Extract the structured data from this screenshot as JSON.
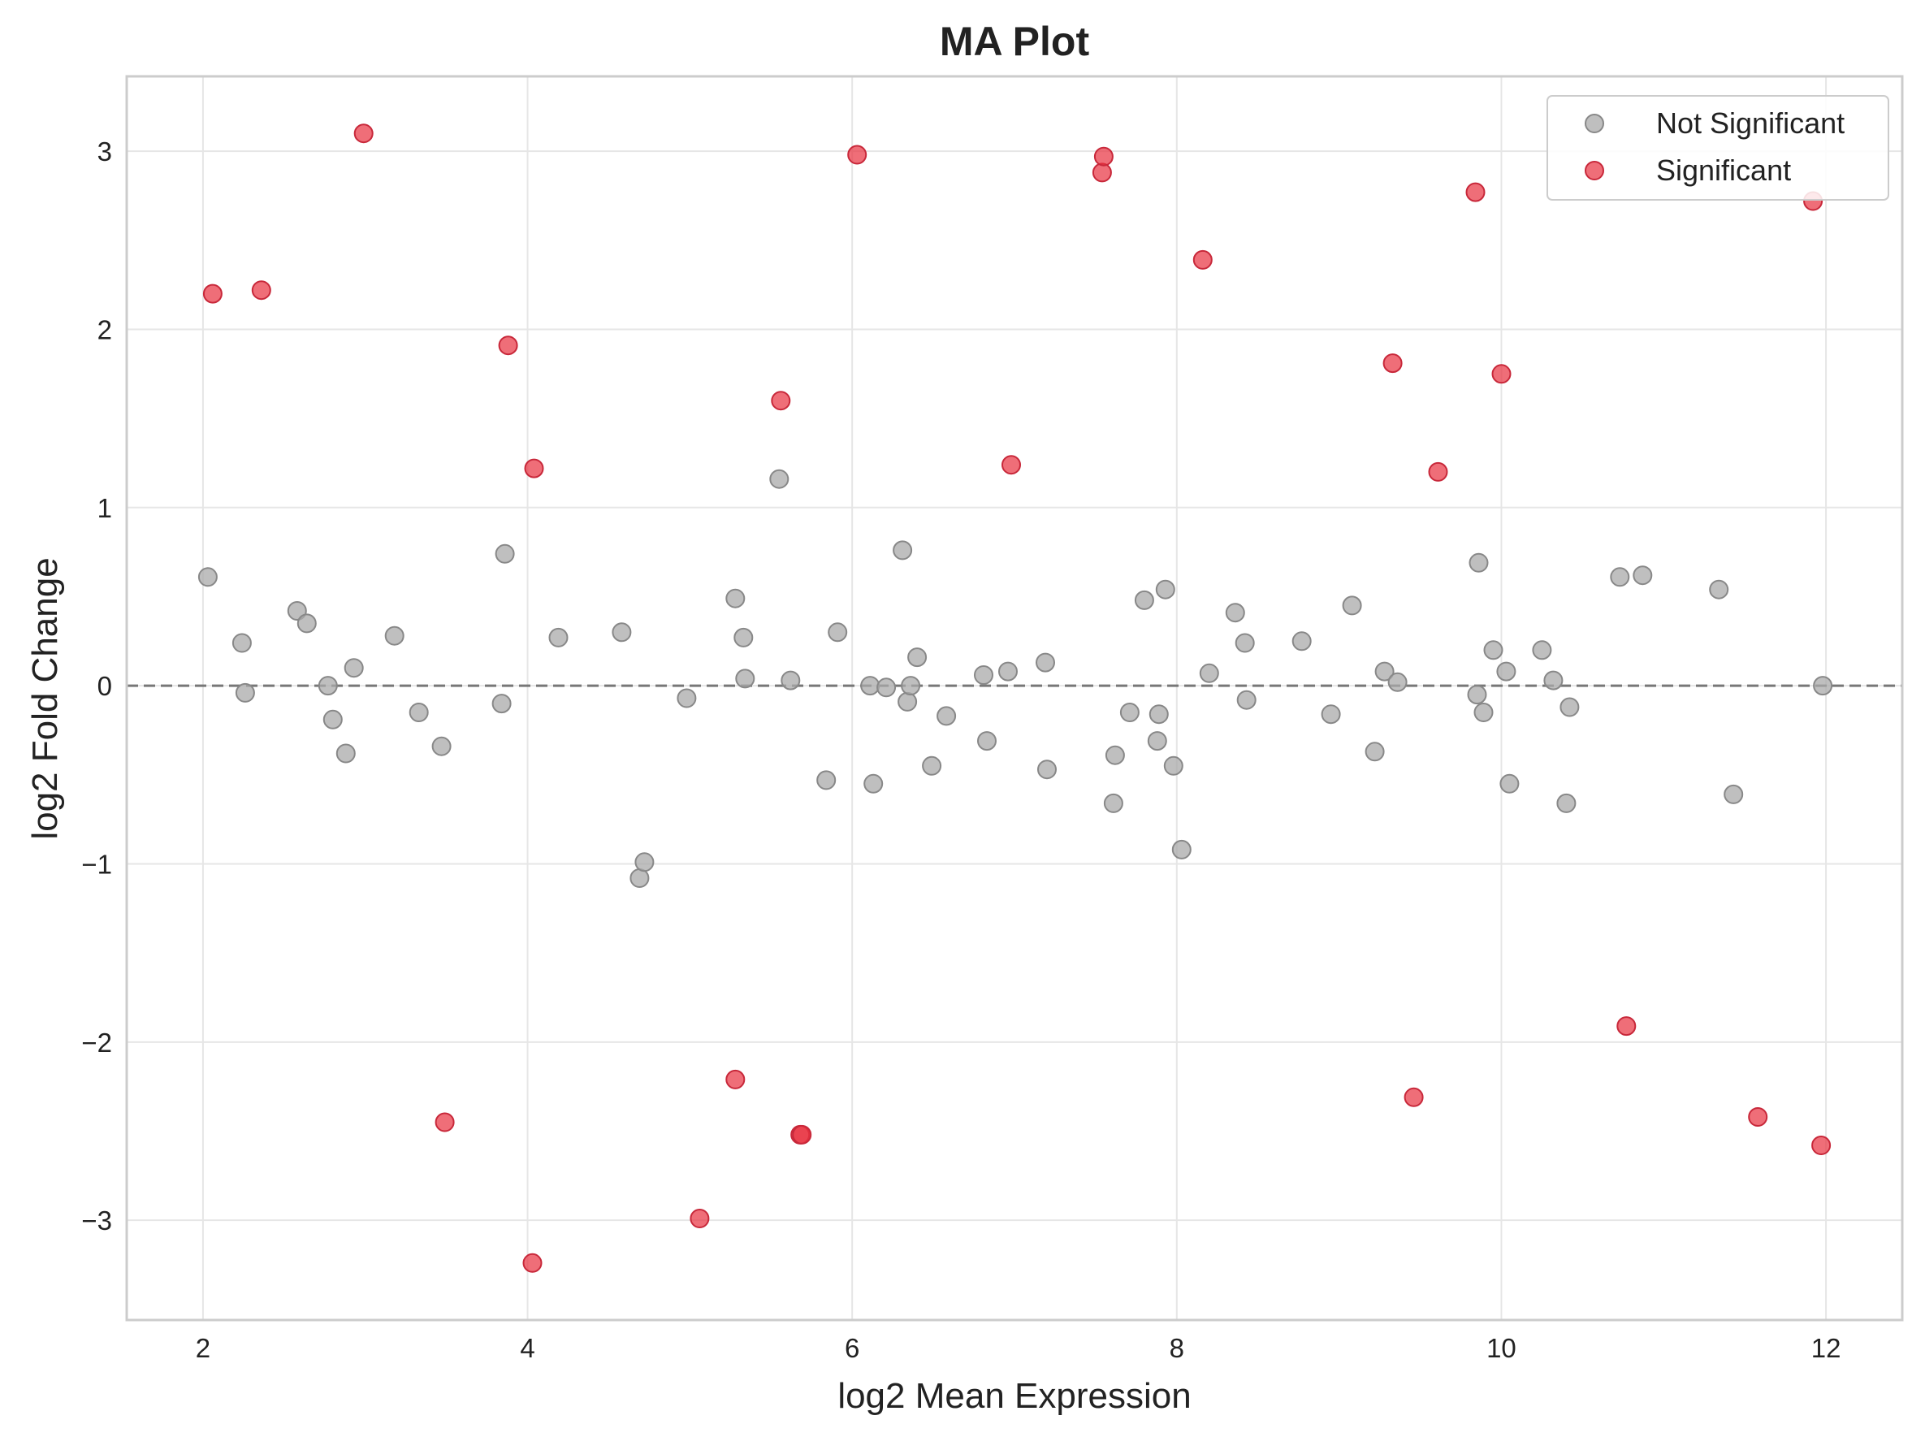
{
  "chart_data": {
    "type": "scatter",
    "title": "MA Plot",
    "xlabel": "log2 Mean Expression",
    "ylabel": "log2 Fold Change",
    "xlim": [
      1.53,
      12.47
    ],
    "ylim": [
      -3.56,
      3.42
    ],
    "xticks": [
      2,
      4,
      6,
      8,
      10,
      12
    ],
    "xtick_labels": [
      "2",
      "4",
      "6",
      "8",
      "10",
      "12"
    ],
    "yticks": [
      -3,
      -2,
      -1,
      0,
      1,
      2,
      3
    ],
    "ytick_labels": [
      "−3",
      "−2",
      "−1",
      "0",
      "1",
      "2",
      "3"
    ],
    "grid": true,
    "reference_line": {
      "y": 0,
      "style": "dashed",
      "color": "#777777"
    },
    "legend": {
      "location": "top-right"
    },
    "series": [
      {
        "name": "Not Significant",
        "color": "#aaaaaa",
        "points": [
          [
            2.03,
            0.61
          ],
          [
            2.24,
            0.24
          ],
          [
            2.26,
            -0.04
          ],
          [
            2.58,
            0.42
          ],
          [
            2.64,
            0.35
          ],
          [
            2.77,
            0.0
          ],
          [
            2.8,
            -0.19
          ],
          [
            2.88,
            -0.38
          ],
          [
            2.93,
            0.1
          ],
          [
            3.18,
            0.28
          ],
          [
            3.33,
            -0.15
          ],
          [
            3.47,
            -0.34
          ],
          [
            3.84,
            -0.1
          ],
          [
            3.86,
            0.74
          ],
          [
            4.19,
            0.27
          ],
          [
            4.58,
            0.3
          ],
          [
            4.69,
            -1.08
          ],
          [
            4.72,
            -0.99
          ],
          [
            4.98,
            -0.07
          ],
          [
            5.28,
            0.49
          ],
          [
            5.33,
            0.27
          ],
          [
            5.34,
            0.04
          ],
          [
            5.55,
            1.16
          ],
          [
            5.62,
            0.03
          ],
          [
            5.84,
            -0.53
          ],
          [
            5.91,
            0.3
          ],
          [
            6.11,
            0.0
          ],
          [
            6.13,
            -0.55
          ],
          [
            6.21,
            -0.01
          ],
          [
            6.31,
            0.76
          ],
          [
            6.34,
            -0.09
          ],
          [
            6.36,
            0.0
          ],
          [
            6.4,
            0.16
          ],
          [
            6.49,
            -0.45
          ],
          [
            6.58,
            -0.17
          ],
          [
            6.81,
            0.06
          ],
          [
            6.83,
            -0.31
          ],
          [
            6.96,
            0.08
          ],
          [
            7.19,
            0.13
          ],
          [
            7.2,
            -0.47
          ],
          [
            7.61,
            -0.66
          ],
          [
            7.62,
            -0.39
          ],
          [
            7.71,
            -0.15
          ],
          [
            7.8,
            0.48
          ],
          [
            7.88,
            -0.31
          ],
          [
            7.89,
            -0.16
          ],
          [
            7.93,
            0.54
          ],
          [
            7.98,
            -0.45
          ],
          [
            8.03,
            -0.92
          ],
          [
            8.2,
            0.07
          ],
          [
            8.36,
            0.41
          ],
          [
            8.42,
            0.24
          ],
          [
            8.43,
            -0.08
          ],
          [
            8.77,
            0.25
          ],
          [
            8.95,
            -0.16
          ],
          [
            9.08,
            0.45
          ],
          [
            9.22,
            -0.37
          ],
          [
            9.28,
            0.08
          ],
          [
            9.36,
            0.02
          ],
          [
            9.85,
            -0.05
          ],
          [
            9.86,
            0.69
          ],
          [
            9.89,
            -0.15
          ],
          [
            9.95,
            0.2
          ],
          [
            10.03,
            0.08
          ],
          [
            10.05,
            -0.55
          ],
          [
            10.25,
            0.2
          ],
          [
            10.32,
            0.03
          ],
          [
            10.4,
            -0.66
          ],
          [
            10.42,
            -0.12
          ],
          [
            10.73,
            0.61
          ],
          [
            10.87,
            0.62
          ],
          [
            11.34,
            0.54
          ],
          [
            11.43,
            -0.61
          ],
          [
            11.98,
            0.0
          ]
        ]
      },
      {
        "name": "Significant",
        "color": "#e8303f",
        "points": [
          [
            2.06,
            2.2
          ],
          [
            2.36,
            2.22
          ],
          [
            2.99,
            3.1
          ],
          [
            3.49,
            -2.45
          ],
          [
            3.88,
            1.91
          ],
          [
            4.03,
            -3.24
          ],
          [
            4.04,
            1.22
          ],
          [
            5.06,
            -2.99
          ],
          [
            5.28,
            -2.21
          ],
          [
            5.56,
            1.6
          ],
          [
            5.68,
            -2.52
          ],
          [
            5.69,
            -2.52
          ],
          [
            6.03,
            2.98
          ],
          [
            6.98,
            1.24
          ],
          [
            7.54,
            2.88
          ],
          [
            7.55,
            2.97
          ],
          [
            8.16,
            2.39
          ],
          [
            9.33,
            1.81
          ],
          [
            9.46,
            -2.31
          ],
          [
            9.61,
            1.2
          ],
          [
            9.84,
            2.77
          ],
          [
            10.0,
            1.75
          ],
          [
            10.77,
            -1.91
          ],
          [
            11.58,
            -2.42
          ],
          [
            11.92,
            2.72
          ],
          [
            11.97,
            -2.58
          ]
        ]
      }
    ]
  }
}
